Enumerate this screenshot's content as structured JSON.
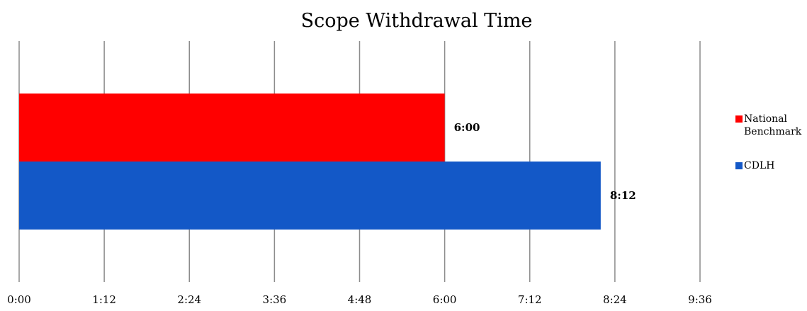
{
  "chart_data": {
    "type": "bar",
    "orientation": "horizontal",
    "title": "Scope Withdrawal Time",
    "xlabel": "",
    "ylabel": "",
    "x_unit": "minutes",
    "xlim": [
      0,
      9.6
    ],
    "x_ticks": [
      {
        "value": 0,
        "label": "0:00"
      },
      {
        "value": 1.2,
        "label": "1:12"
      },
      {
        "value": 2.4,
        "label": "2:24"
      },
      {
        "value": 3.6,
        "label": "3:36"
      },
      {
        "value": 4.8,
        "label": "4:48"
      },
      {
        "value": 6.0,
        "label": "6:00"
      },
      {
        "value": 7.2,
        "label": "7:12"
      },
      {
        "value": 8.4,
        "label": "8:24"
      },
      {
        "value": 9.6,
        "label": "9:36"
      }
    ],
    "grid": "vertical",
    "legend_position": "right",
    "series": [
      {
        "name": "National Benchmark",
        "legend_lines": [
          "National",
          "Benchmark"
        ],
        "value": 6.0,
        "label": "6:00",
        "color": "#ff0000"
      },
      {
        "name": "CDLH",
        "legend_lines": [
          "CDLH"
        ],
        "value": 8.2,
        "label": "8:12",
        "color": "#1358c7"
      }
    ]
  }
}
